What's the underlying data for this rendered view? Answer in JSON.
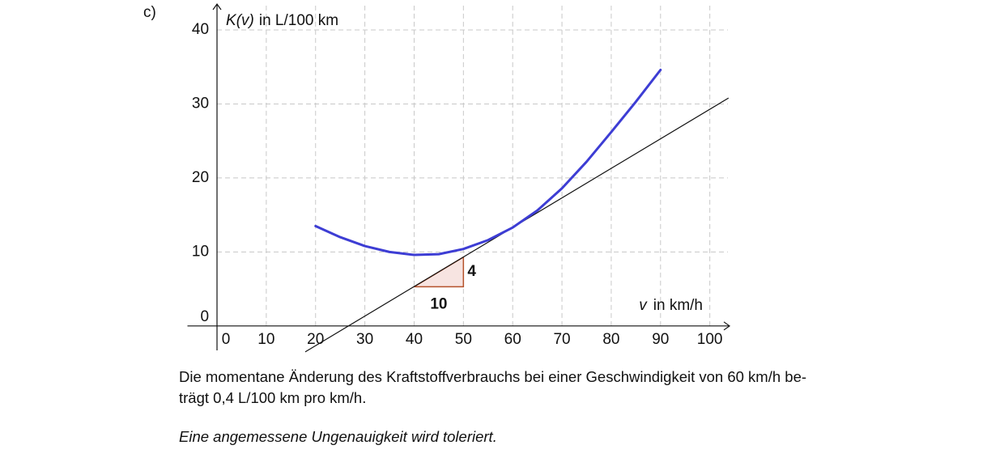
{
  "item_label": "c)",
  "chart_data": {
    "type": "line",
    "y_label_var": "K(v)",
    "y_label_unit": "in L/100 km",
    "x_label_var": "v",
    "x_label_unit": "in km/h",
    "x": [
      20,
      25,
      30,
      35,
      40,
      45,
      50,
      55,
      60,
      65,
      70,
      75,
      80,
      85,
      90
    ],
    "series": [
      {
        "color": "#3d3dd4",
        "values": [
          13.5,
          12,
          10.8,
          10,
          9.6,
          9.7,
          10.4,
          11.6,
          13.3,
          15.6,
          18.6,
          22.2,
          26.2,
          30.3,
          34.6
        ]
      }
    ],
    "tangent": {
      "color": "#111111",
      "x": [
        17.9,
        103.8
      ],
      "values": [
        -3.5,
        30.8
      ]
    },
    "slope_triangle": {
      "color": "#b5522b",
      "fill": "#f7e4e1",
      "x": [
        40,
        50,
        50
      ],
      "values": [
        5.3,
        5.3,
        9.3
      ],
      "run_label": "10",
      "rise_label": "4"
    },
    "xlim": [
      -6,
      104
    ],
    "ylim": [
      -3.3,
      43.5
    ],
    "xticks": [
      0,
      10,
      20,
      30,
      40,
      50,
      60,
      70,
      80,
      90,
      100
    ],
    "yticks": [
      0,
      10,
      20,
      30,
      40
    ],
    "grid": true
  },
  "text": {
    "lines": [
      "Die momentane Änderung des Kraftstoffverbrauchs bei einer Geschwindigkeit von 60 km/h be-",
      "trägt 0,4 L/100 km pro km/h."
    ],
    "note": "Eine angemessene Ungenauigkeit wird toleriert."
  }
}
